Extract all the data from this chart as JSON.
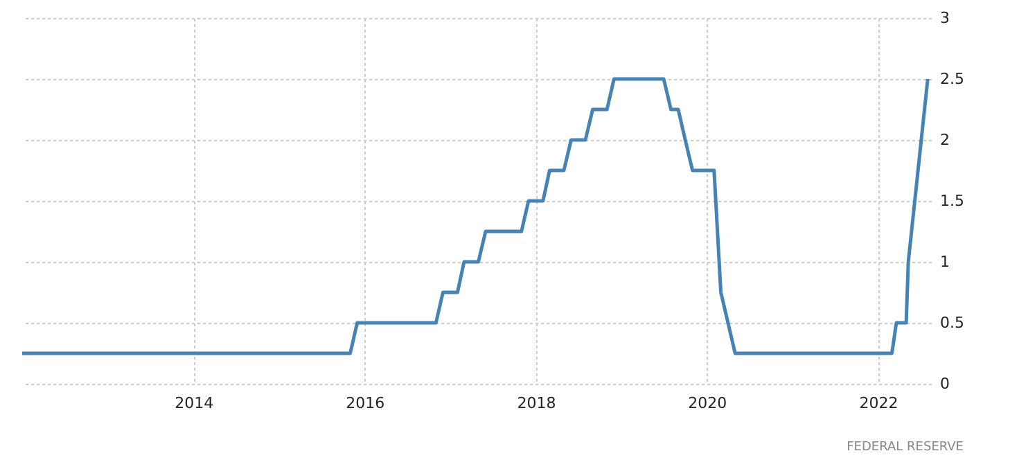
{
  "chart_data": {
    "type": "line",
    "x": [
      "2012-01",
      "2015-11",
      "2015-12",
      "2016-11",
      "2016-12",
      "2017-02",
      "2017-03",
      "2017-05",
      "2017-06",
      "2017-11",
      "2017-12",
      "2018-02",
      "2018-03",
      "2018-05",
      "2018-06",
      "2018-08",
      "2018-09",
      "2018-11",
      "2018-12",
      "2019-07",
      "2019-08",
      "2019-09",
      "2019-10",
      "2019-11",
      "2020-02",
      "2020-03",
      "2020-05",
      "2022-03-01",
      "2022-03-20",
      "2022-05-01",
      "2022-05-10",
      "2022-08-01"
    ],
    "series": [
      {
        "color": "#4682b4",
        "values": [
          0.25,
          0.25,
          0.5,
          0.5,
          0.75,
          0.75,
          1.0,
          1.0,
          1.25,
          1.25,
          1.5,
          1.5,
          1.75,
          1.75,
          2.0,
          2.0,
          2.25,
          2.25,
          2.5,
          2.5,
          2.25,
          2.25,
          2.0,
          1.75,
          1.75,
          0.75,
          0.25,
          0.25,
          0.5,
          0.5,
          1.0,
          2.5
        ]
      }
    ],
    "xlim": [
      "2012-01",
      "2022-08-15"
    ],
    "xticks": [
      "2014",
      "2016",
      "2018",
      "2020",
      "2022"
    ],
    "ylim": [
      0,
      3
    ],
    "yticks": [
      0,
      0.5,
      1,
      1.5,
      2,
      2.5,
      3
    ],
    "grid": true,
    "marker": "none",
    "line_style": "solid",
    "annotations": [
      "FEDERAL RESERVE"
    ]
  }
}
